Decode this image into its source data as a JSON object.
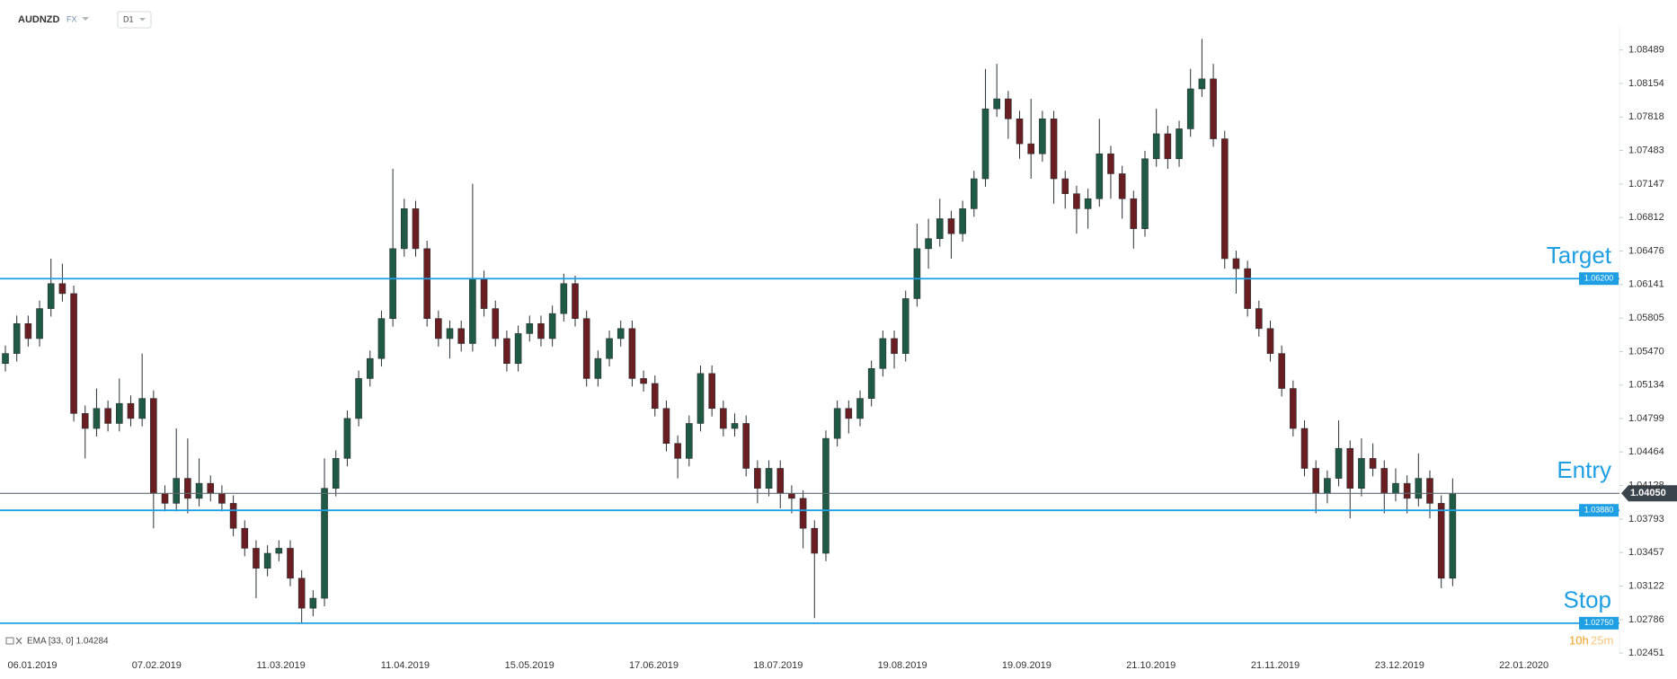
{
  "header": {
    "symbol": "AUDNZD",
    "market": "FX",
    "timeframe": "D1"
  },
  "chart_data": {
    "type": "candlestick",
    "up_color": "#1f5a45",
    "down_color": "#6b1e22",
    "open": [
      1.0535,
      1.0545,
      1.0575,
      1.056,
      1.059,
      1.0615,
      1.0605,
      1.0485,
      1.047,
      1.049,
      1.0475,
      1.0495,
      1.048,
      1.05,
      1.0405,
      1.0395,
      1.042,
      1.04,
      1.0415,
      1.0405,
      1.0395,
      1.037,
      1.035,
      1.033,
      1.0345,
      1.035,
      1.032,
      1.029,
      1.03,
      1.041,
      1.044,
      1.048,
      1.052,
      1.054,
      1.058,
      1.065,
      1.069,
      1.065,
      1.058,
      1.056,
      1.057,
      1.0555,
      1.062,
      1.059,
      1.056,
      1.0535,
      1.0565,
      1.0575,
      1.056,
      1.0585,
      1.0615,
      1.058,
      1.052,
      1.054,
      1.056,
      1.057,
      1.052,
      1.0515,
      1.049,
      1.0455,
      1.044,
      1.0475,
      1.0525,
      1.049,
      1.047,
      1.0475,
      1.043,
      1.041,
      1.043,
      1.0405,
      1.04,
      1.037,
      1.0345,
      1.046,
      1.049,
      1.048,
      1.05,
      1.053,
      1.056,
      1.0545,
      1.06,
      1.065,
      1.066,
      1.068,
      1.0665,
      1.069,
      1.072,
      1.079,
      1.08,
      1.078,
      1.0755,
      1.0745,
      1.078,
      1.072,
      1.0705,
      1.069,
      1.07,
      1.0745,
      1.0725,
      1.07,
      1.067,
      1.074,
      1.0765,
      1.074,
      1.077,
      1.081,
      1.082,
      1.076,
      1.064,
      1.063,
      1.059,
      1.057,
      1.0545,
      1.051,
      1.047,
      1.043,
      1.0405,
      1.042,
      1.045,
      1.041,
      1.044,
      1.043,
      1.0405,
      1.0415,
      1.04,
      1.042,
      1.0395,
      1.032
    ],
    "high": [
      1.0553,
      1.0583,
      1.0583,
      1.0598,
      1.064,
      1.0635,
      1.0613,
      1.0493,
      1.051,
      1.0498,
      1.052,
      1.0503,
      1.0545,
      1.0508,
      1.0413,
      1.047,
      1.046,
      1.044,
      1.0423,
      1.0413,
      1.0403,
      1.0378,
      1.0358,
      1.0353,
      1.0358,
      1.0358,
      1.0328,
      1.0308,
      1.044,
      1.0448,
      1.0488,
      1.0528,
      1.0548,
      1.0588,
      1.073,
      1.07,
      1.0698,
      1.0658,
      1.0588,
      1.0578,
      1.0578,
      1.0715,
      1.0628,
      1.0598,
      1.0568,
      1.0573,
      1.0583,
      1.0583,
      1.0593,
      1.0625,
      1.0623,
      1.0588,
      1.0548,
      1.0568,
      1.0578,
      1.0578,
      1.0528,
      1.0523,
      1.0498,
      1.0463,
      1.0483,
      1.0533,
      1.0533,
      1.0498,
      1.0485,
      1.0483,
      1.0438,
      1.0438,
      1.0438,
      1.0413,
      1.0408,
      1.0378,
      1.0468,
      1.0498,
      1.0498,
      1.0508,
      1.0538,
      1.0568,
      1.0568,
      1.0608,
      1.0675,
      1.068,
      1.07,
      1.0688,
      1.0698,
      1.0728,
      1.083,
      1.0835,
      1.0808,
      1.0788,
      1.08,
      1.0788,
      1.0788,
      1.0728,
      1.0713,
      1.071,
      1.078,
      1.0753,
      1.0733,
      1.0708,
      1.0748,
      1.079,
      1.0773,
      1.0778,
      1.083,
      1.086,
      1.0835,
      1.0768,
      1.0648,
      1.0638,
      1.0598,
      1.0578,
      1.0553,
      1.0518,
      1.0478,
      1.0438,
      1.0428,
      1.0478,
      1.0458,
      1.046,
      1.0455,
      1.0438,
      1.043,
      1.0423,
      1.0445,
      1.0428,
      1.0403,
      1.042
    ],
    "low": [
      1.0527,
      1.0537,
      1.0552,
      1.0552,
      1.0582,
      1.0597,
      1.0477,
      1.044,
      1.0462,
      1.0467,
      1.0467,
      1.0472,
      1.0472,
      1.037,
      1.0387,
      1.0387,
      1.0385,
      1.0392,
      1.0397,
      1.0387,
      1.0362,
      1.0342,
      1.03,
      1.0322,
      1.0337,
      1.0312,
      1.0275,
      1.0282,
      1.0292,
      1.0402,
      1.0432,
      1.0472,
      1.0512,
      1.0532,
      1.0572,
      1.0642,
      1.0642,
      1.0572,
      1.0552,
      1.054,
      1.0547,
      1.0547,
      1.0582,
      1.0552,
      1.0527,
      1.0527,
      1.0557,
      1.0552,
      1.0552,
      1.0577,
      1.0572,
      1.0512,
      1.0512,
      1.0532,
      1.0552,
      1.0512,
      1.0507,
      1.0482,
      1.0447,
      1.042,
      1.0432,
      1.0467,
      1.0482,
      1.0462,
      1.0462,
      1.0422,
      1.0395,
      1.0402,
      1.039,
      1.0385,
      1.035,
      1.028,
      1.0337,
      1.0452,
      1.0465,
      1.0472,
      1.0492,
      1.0522,
      1.053,
      1.0537,
      1.0592,
      1.063,
      1.0652,
      1.064,
      1.0657,
      1.0682,
      1.0712,
      1.0782,
      1.076,
      1.074,
      1.072,
      1.0737,
      1.0695,
      1.069,
      1.0665,
      1.067,
      1.0692,
      1.07,
      1.068,
      1.065,
      1.0662,
      1.0732,
      1.073,
      1.0732,
      1.0762,
      1.0802,
      1.0752,
      1.063,
      1.0605,
      1.0582,
      1.0562,
      1.0537,
      1.0502,
      1.0462,
      1.0422,
      1.0385,
      1.0395,
      1.0412,
      1.038,
      1.0402,
      1.0422,
      1.0385,
      1.0397,
      1.0385,
      1.0392,
      1.038,
      1.031,
      1.0312
    ],
    "close": [
      1.0545,
      1.0575,
      1.056,
      1.059,
      1.0615,
      1.0605,
      1.0485,
      1.047,
      1.049,
      1.0475,
      1.0495,
      1.048,
      1.05,
      1.0405,
      1.0395,
      1.042,
      1.04,
      1.0415,
      1.0405,
      1.0395,
      1.037,
      1.035,
      1.033,
      1.0345,
      1.035,
      1.032,
      1.029,
      1.03,
      1.041,
      1.044,
      1.048,
      1.052,
      1.054,
      1.058,
      1.065,
      1.069,
      1.065,
      1.058,
      1.056,
      1.057,
      1.0555,
      1.062,
      1.059,
      1.056,
      1.0535,
      1.0565,
      1.0575,
      1.056,
      1.0585,
      1.0615,
      1.058,
      1.052,
      1.054,
      1.056,
      1.057,
      1.052,
      1.0515,
      1.049,
      1.0455,
      1.044,
      1.0475,
      1.0525,
      1.049,
      1.047,
      1.0475,
      1.043,
      1.041,
      1.043,
      1.0405,
      1.04,
      1.037,
      1.0345,
      1.046,
      1.049,
      1.048,
      1.05,
      1.053,
      1.056,
      1.0545,
      1.06,
      1.065,
      1.066,
      1.068,
      1.0665,
      1.069,
      1.072,
      1.079,
      1.08,
      1.078,
      1.0755,
      1.0745,
      1.078,
      1.072,
      1.0705,
      1.069,
      1.07,
      1.0745,
      1.0725,
      1.07,
      1.067,
      1.074,
      1.0765,
      1.074,
      1.077,
      1.081,
      1.082,
      1.076,
      1.064,
      1.063,
      1.059,
      1.057,
      1.0545,
      1.051,
      1.047,
      1.043,
      1.0405,
      1.042,
      1.045,
      1.041,
      1.044,
      1.043,
      1.0405,
      1.0415,
      1.04,
      1.042,
      1.0395,
      1.032,
      1.0405
    ],
    "ylim": [
      1.0229,
      1.0872
    ],
    "yticks": [
      1.08489,
      1.08154,
      1.07818,
      1.07483,
      1.07147,
      1.06812,
      1.06476,
      1.06141,
      1.05805,
      {
        "value": 1.0547,
        "label": "1.05470"
      },
      1.05134,
      1.04799,
      1.04464,
      1.04128,
      1.03793,
      1.03457,
      1.03122,
      1.02786,
      1.02451
    ],
    "x_labels": [
      "06.01.2019",
      "07.02.2019",
      "11.03.2019",
      "11.04.2019",
      "15.05.2019",
      "17.06.2019",
      "18.07.2019",
      "19.08.2019",
      "19.09.2019",
      "21.10.2019",
      "21.11.2019",
      "23.12.2019",
      "22.01.2020"
    ],
    "levels": [
      {
        "name": "Target",
        "value": 1.062,
        "label": "1.06200",
        "color": "#1e9fe3",
        "tag": "plot"
      },
      {
        "name": "Entry",
        "value": 1.0405,
        "label": "1.04050",
        "color": "#5f6b76",
        "tag": "axis"
      },
      {
        "value": 1.0388,
        "label": "1.03880",
        "color": "#1e9fe3",
        "tag": "plot"
      },
      {
        "name": "Stop",
        "value": 1.0275,
        "label": "1.02750",
        "color": "#1e9fe3",
        "tag": "plot"
      }
    ],
    "indicator": "EMA [33, 0] 1.04284",
    "countdown": [
      "10h",
      "25m"
    ]
  }
}
